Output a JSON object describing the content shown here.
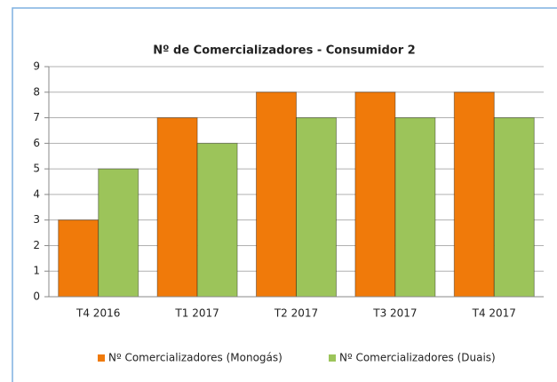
{
  "chart_data": {
    "type": "bar",
    "title": "Nº de Comercializadores - Consumidor 2",
    "categories": [
      "T4 2016",
      "T1 2017",
      "T2 2017",
      "T3 2017",
      "T4 2017"
    ],
    "series": [
      {
        "name": "Nº Comercializadores (Monogás)",
        "color": "#f07a0a",
        "values": [
          3,
          7,
          8,
          8,
          8
        ]
      },
      {
        "name": "Nº Comercializadores (Duais)",
        "color": "#9cc45a",
        "values": [
          5,
          6,
          7,
          7,
          7
        ]
      }
    ],
    "ylim": [
      0,
      9
    ],
    "yticks": [
      0,
      1,
      2,
      3,
      4,
      5,
      6,
      7,
      8,
      9
    ],
    "grid": true,
    "legend": "bottom"
  }
}
